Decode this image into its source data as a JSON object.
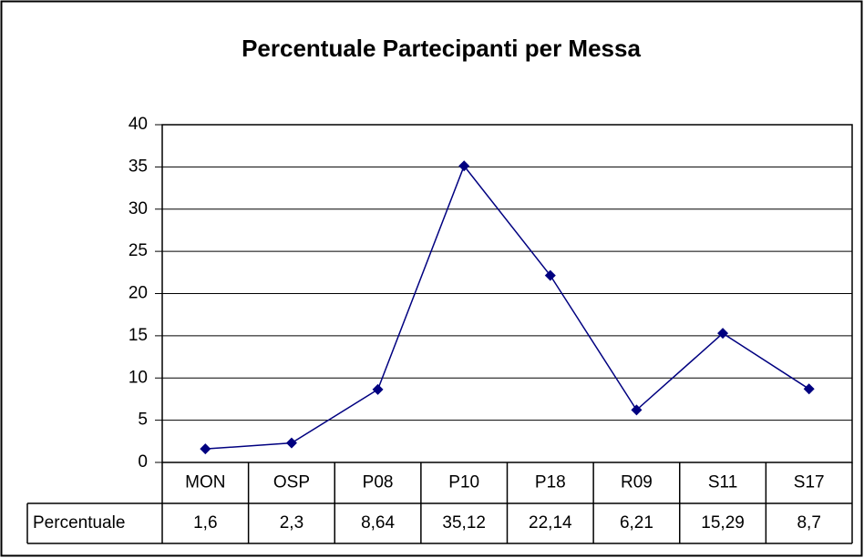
{
  "chart_data": {
    "type": "line",
    "title": "Percentuale Partecipanti per Messa",
    "categories": [
      "MON",
      "OSP",
      "P08",
      "P10",
      "P18",
      "R09",
      "S11",
      "S17"
    ],
    "series": [
      {
        "name": "Percentuale",
        "color": "#000080",
        "values": [
          1.6,
          2.3,
          8.64,
          35.12,
          22.14,
          6.21,
          15.29,
          8.7
        ],
        "value_labels": [
          "1,6",
          "2,3",
          "8,64",
          "35,12",
          "22,14",
          "6,21",
          "15,29",
          "8,7"
        ]
      }
    ],
    "ylim": [
      0,
      40
    ],
    "yticks": [
      0,
      5,
      10,
      15,
      20,
      25,
      30,
      35,
      40
    ],
    "grid": true
  }
}
